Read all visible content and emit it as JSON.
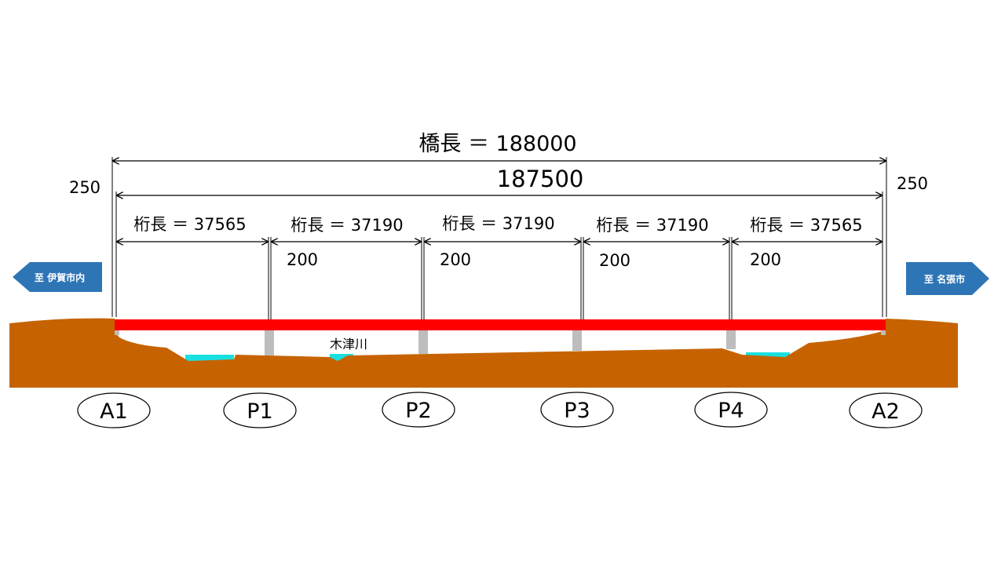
{
  "bridge_length_label": "橋長 ＝ 188000",
  "span_total_label": "187500",
  "left_edge_label": "250",
  "right_edge_label": "250",
  "girders": [
    {
      "label": "桁長 ＝ 37565"
    },
    {
      "label": "桁長 ＝ 37190"
    },
    {
      "label": "桁長 ＝ 37190"
    },
    {
      "label": "桁長 ＝ 37190"
    },
    {
      "label": "桁長 ＝ 37565"
    }
  ],
  "gaps": [
    "200",
    "200",
    "200",
    "200"
  ],
  "left_direction": "至 伊賀市内",
  "right_direction": "至 名張市",
  "river_label": "木津川",
  "supports": [
    "A1",
    "P1",
    "P2",
    "P3",
    "P4",
    "A2"
  ],
  "colors": {
    "deck": "#ff0000",
    "ground": "#c66300",
    "water": "#19e0e0",
    "pier": "#bdbdbd",
    "direction_arrow": "#2e75b6"
  }
}
